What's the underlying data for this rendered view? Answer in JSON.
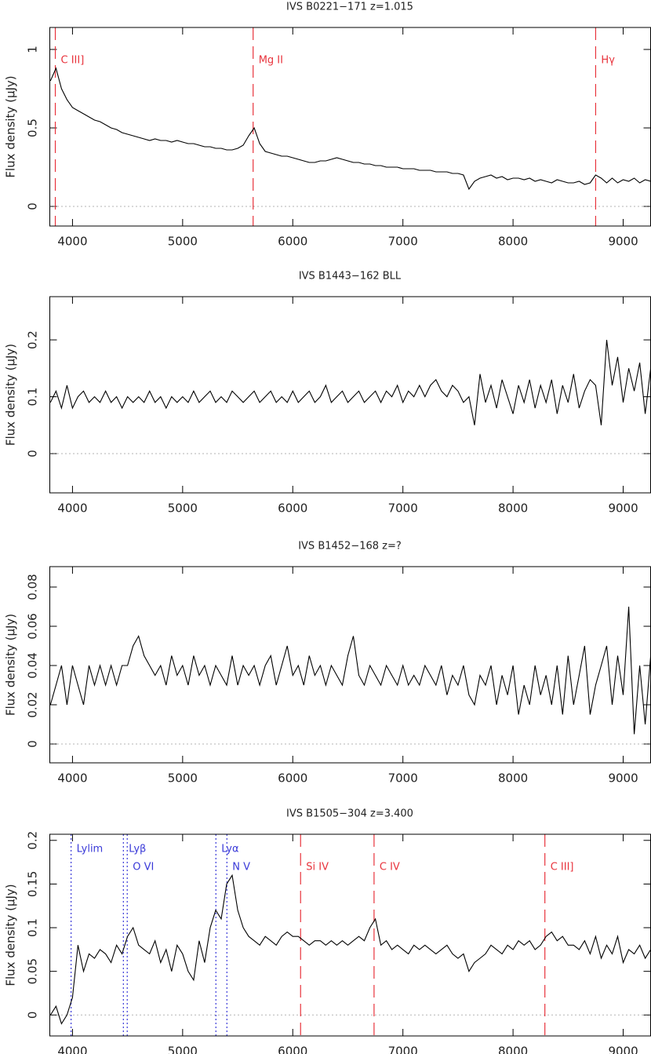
{
  "chart_data": [
    {
      "type": "line",
      "title": "IVS B0221−171 z=1.015",
      "y_label": "Flux density (μJy)",
      "color": "#000000",
      "hline": 0,
      "xlim": [
        3794,
        9249
      ],
      "ylim": [
        -0.125,
        1.14
      ],
      "xticks": [
        4000,
        5000,
        6000,
        7000,
        8000,
        9000
      ],
      "yticks": [
        0,
        0.5,
        1
      ],
      "x": [
        3800,
        3850,
        3900,
        3950,
        4000,
        4050,
        4100,
        4150,
        4200,
        4250,
        4300,
        4350,
        4400,
        4450,
        4500,
        4550,
        4600,
        4650,
        4700,
        4750,
        4800,
        4850,
        4900,
        4950,
        5000,
        5050,
        5100,
        5150,
        5200,
        5250,
        5300,
        5350,
        5400,
        5450,
        5500,
        5550,
        5600,
        5650,
        5700,
        5750,
        5800,
        5850,
        5900,
        5950,
        6000,
        6050,
        6100,
        6150,
        6200,
        6250,
        6300,
        6350,
        6400,
        6450,
        6500,
        6550,
        6600,
        6650,
        6700,
        6750,
        6800,
        6850,
        6900,
        6950,
        7000,
        7050,
        7100,
        7150,
        7200,
        7250,
        7300,
        7350,
        7400,
        7450,
        7500,
        7550,
        7600,
        7650,
        7700,
        7750,
        7800,
        7850,
        7900,
        7950,
        8000,
        8050,
        8100,
        8150,
        8200,
        8250,
        8300,
        8350,
        8400,
        8450,
        8500,
        8550,
        8600,
        8650,
        8700,
        8750,
        8800,
        8850,
        8900,
        8950,
        9000,
        9050,
        9100,
        9150,
        9200,
        9250
      ],
      "values": [
        0.8,
        0.88,
        0.75,
        0.68,
        0.63,
        0.61,
        0.59,
        0.57,
        0.55,
        0.54,
        0.52,
        0.5,
        0.49,
        0.47,
        0.46,
        0.45,
        0.44,
        0.43,
        0.42,
        0.43,
        0.42,
        0.42,
        0.41,
        0.42,
        0.41,
        0.4,
        0.4,
        0.39,
        0.38,
        0.38,
        0.37,
        0.37,
        0.36,
        0.36,
        0.37,
        0.39,
        0.45,
        0.5,
        0.4,
        0.35,
        0.34,
        0.33,
        0.32,
        0.32,
        0.31,
        0.3,
        0.29,
        0.28,
        0.28,
        0.29,
        0.29,
        0.3,
        0.31,
        0.3,
        0.29,
        0.28,
        0.28,
        0.27,
        0.27,
        0.26,
        0.26,
        0.25,
        0.25,
        0.25,
        0.24,
        0.24,
        0.24,
        0.23,
        0.23,
        0.23,
        0.22,
        0.22,
        0.22,
        0.21,
        0.21,
        0.2,
        0.11,
        0.16,
        0.18,
        0.19,
        0.2,
        0.18,
        0.19,
        0.17,
        0.18,
        0.18,
        0.17,
        0.18,
        0.16,
        0.17,
        0.16,
        0.15,
        0.17,
        0.16,
        0.15,
        0.15,
        0.16,
        0.14,
        0.15,
        0.2,
        0.18,
        0.15,
        0.18,
        0.15,
        0.17,
        0.16,
        0.18,
        0.15,
        0.17,
        0.16
      ],
      "lines": [
        {
          "x": 3844,
          "label": "C III]",
          "color": "#e8333c",
          "style": "dashed"
        },
        {
          "x": 5640,
          "label": "Mg II",
          "color": "#e8333c",
          "style": "dashed"
        },
        {
          "x": 8750,
          "label": "Hγ",
          "color": "#e8333c",
          "style": "dashed"
        }
      ]
    },
    {
      "type": "line",
      "title": "IVS B1443−162   BLL",
      "y_label": "Flux density (μJy)",
      "color": "#000000",
      "hline": 0,
      "xlim": [
        3794,
        9249
      ],
      "ylim": [
        -0.069,
        0.276
      ],
      "xticks": [
        4000,
        5000,
        6000,
        7000,
        8000,
        9000
      ],
      "yticks": [
        0,
        0.1,
        0.2
      ],
      "x": [
        3800,
        3850,
        3900,
        3950,
        4000,
        4050,
        4100,
        4150,
        4200,
        4250,
        4300,
        4350,
        4400,
        4450,
        4500,
        4550,
        4600,
        4650,
        4700,
        4750,
        4800,
        4850,
        4900,
        4950,
        5000,
        5050,
        5100,
        5150,
        5200,
        5250,
        5300,
        5350,
        5400,
        5450,
        5500,
        5550,
        5600,
        5650,
        5700,
        5750,
        5800,
        5850,
        5900,
        5950,
        6000,
        6050,
        6100,
        6150,
        6200,
        6250,
        6300,
        6350,
        6400,
        6450,
        6500,
        6550,
        6600,
        6650,
        6700,
        6750,
        6800,
        6850,
        6900,
        6950,
        7000,
        7050,
        7100,
        7150,
        7200,
        7250,
        7300,
        7350,
        7400,
        7450,
        7500,
        7550,
        7600,
        7650,
        7700,
        7750,
        7800,
        7850,
        7900,
        7950,
        8000,
        8050,
        8100,
        8150,
        8200,
        8250,
        8300,
        8350,
        8400,
        8450,
        8500,
        8550,
        8600,
        8650,
        8700,
        8750,
        8800,
        8850,
        8900,
        8950,
        9000,
        9050,
        9100,
        9150,
        9200,
        9250
      ],
      "values": [
        0.09,
        0.11,
        0.08,
        0.12,
        0.08,
        0.1,
        0.11,
        0.09,
        0.1,
        0.09,
        0.11,
        0.09,
        0.1,
        0.08,
        0.1,
        0.09,
        0.1,
        0.09,
        0.11,
        0.09,
        0.1,
        0.08,
        0.1,
        0.09,
        0.1,
        0.09,
        0.11,
        0.09,
        0.1,
        0.11,
        0.09,
        0.1,
        0.09,
        0.11,
        0.1,
        0.09,
        0.1,
        0.11,
        0.09,
        0.1,
        0.11,
        0.09,
        0.1,
        0.09,
        0.11,
        0.09,
        0.1,
        0.11,
        0.09,
        0.1,
        0.12,
        0.09,
        0.1,
        0.11,
        0.09,
        0.1,
        0.11,
        0.09,
        0.1,
        0.11,
        0.09,
        0.11,
        0.1,
        0.12,
        0.09,
        0.11,
        0.1,
        0.12,
        0.1,
        0.12,
        0.13,
        0.11,
        0.1,
        0.12,
        0.11,
        0.09,
        0.1,
        0.05,
        0.14,
        0.09,
        0.12,
        0.08,
        0.13,
        0.1,
        0.07,
        0.12,
        0.09,
        0.13,
        0.08,
        0.12,
        0.09,
        0.13,
        0.07,
        0.12,
        0.09,
        0.14,
        0.08,
        0.11,
        0.13,
        0.12,
        0.05,
        0.2,
        0.12,
        0.17,
        0.09,
        0.15,
        0.11,
        0.16,
        0.07,
        0.15
      ],
      "lines": []
    },
    {
      "type": "line",
      "title": "IVS B1452−168 z=?",
      "y_label": "Flux density (μJy)",
      "color": "#000000",
      "hline": 0,
      "xlim": [
        3794,
        9249
      ],
      "ylim": [
        -0.0096,
        0.0904
      ],
      "xticks": [
        4000,
        5000,
        6000,
        7000,
        8000,
        9000
      ],
      "yticks": [
        0,
        0.02,
        0.04,
        0.06,
        0.08
      ],
      "x": [
        3800,
        3850,
        3900,
        3950,
        4000,
        4050,
        4100,
        4150,
        4200,
        4250,
        4300,
        4350,
        4400,
        4450,
        4500,
        4550,
        4600,
        4650,
        4700,
        4750,
        4800,
        4850,
        4900,
        4950,
        5000,
        5050,
        5100,
        5150,
        5200,
        5250,
        5300,
        5350,
        5400,
        5450,
        5500,
        5550,
        5600,
        5650,
        5700,
        5750,
        5800,
        5850,
        5900,
        5950,
        6000,
        6050,
        6100,
        6150,
        6200,
        6250,
        6300,
        6350,
        6400,
        6450,
        6500,
        6550,
        6600,
        6650,
        6700,
        6750,
        6800,
        6850,
        6900,
        6950,
        7000,
        7050,
        7100,
        7150,
        7200,
        7250,
        7300,
        7350,
        7400,
        7450,
        7500,
        7550,
        7600,
        7650,
        7700,
        7750,
        7800,
        7850,
        7900,
        7950,
        8000,
        8050,
        8100,
        8150,
        8200,
        8250,
        8300,
        8350,
        8400,
        8450,
        8500,
        8550,
        8600,
        8650,
        8700,
        8750,
        8800,
        8850,
        8900,
        8950,
        9000,
        9050,
        9100,
        9150,
        9200,
        9250
      ],
      "values": [
        0.02,
        0.03,
        0.04,
        0.02,
        0.04,
        0.03,
        0.02,
        0.04,
        0.03,
        0.04,
        0.03,
        0.04,
        0.03,
        0.04,
        0.04,
        0.05,
        0.055,
        0.045,
        0.04,
        0.035,
        0.04,
        0.03,
        0.045,
        0.035,
        0.04,
        0.03,
        0.045,
        0.035,
        0.04,
        0.03,
        0.04,
        0.035,
        0.03,
        0.045,
        0.03,
        0.04,
        0.035,
        0.04,
        0.03,
        0.04,
        0.045,
        0.03,
        0.04,
        0.05,
        0.035,
        0.04,
        0.03,
        0.045,
        0.035,
        0.04,
        0.03,
        0.04,
        0.035,
        0.03,
        0.045,
        0.055,
        0.035,
        0.03,
        0.04,
        0.035,
        0.03,
        0.04,
        0.035,
        0.03,
        0.04,
        0.03,
        0.035,
        0.03,
        0.04,
        0.035,
        0.03,
        0.04,
        0.025,
        0.035,
        0.03,
        0.04,
        0.025,
        0.02,
        0.035,
        0.03,
        0.04,
        0.02,
        0.035,
        0.025,
        0.04,
        0.015,
        0.03,
        0.02,
        0.04,
        0.025,
        0.035,
        0.02,
        0.04,
        0.015,
        0.045,
        0.02,
        0.035,
        0.05,
        0.015,
        0.03,
        0.04,
        0.05,
        0.02,
        0.045,
        0.025,
        0.07,
        0.005,
        0.04,
        0.01,
        0.045
      ],
      "lines": []
    },
    {
      "type": "line",
      "title": "IVS B1505−304 z=3.400",
      "y_label": "Flux density (μJy)",
      "color": "#000000",
      "hline": 0,
      "xlim": [
        3794,
        9249
      ],
      "ylim": [
        -0.024,
        0.207
      ],
      "xticks": [
        4000,
        5000,
        6000,
        7000,
        8000,
        9000
      ],
      "yticks": [
        0,
        0.05,
        0.1,
        0.15,
        0.2
      ],
      "x": [
        3800,
        3850,
        3900,
        3950,
        4000,
        4050,
        4100,
        4150,
        4200,
        4250,
        4300,
        4350,
        4400,
        4450,
        4500,
        4550,
        4600,
        4650,
        4700,
        4750,
        4800,
        4850,
        4900,
        4950,
        5000,
        5050,
        5100,
        5150,
        5200,
        5250,
        5300,
        5350,
        5400,
        5450,
        5500,
        5550,
        5600,
        5650,
        5700,
        5750,
        5800,
        5850,
        5900,
        5950,
        6000,
        6050,
        6100,
        6150,
        6200,
        6250,
        6300,
        6350,
        6400,
        6450,
        6500,
        6550,
        6600,
        6650,
        6700,
        6750,
        6800,
        6850,
        6900,
        6950,
        7000,
        7050,
        7100,
        7150,
        7200,
        7250,
        7300,
        7350,
        7400,
        7450,
        7500,
        7550,
        7600,
        7650,
        7700,
        7750,
        7800,
        7850,
        7900,
        7950,
        8000,
        8050,
        8100,
        8150,
        8200,
        8250,
        8300,
        8350,
        8400,
        8450,
        8500,
        8550,
        8600,
        8650,
        8700,
        8750,
        8800,
        8850,
        8900,
        8950,
        9000,
        9050,
        9100,
        9150,
        9200,
        9250
      ],
      "values": [
        0.0,
        0.01,
        -0.01,
        0.0,
        0.02,
        0.08,
        0.05,
        0.07,
        0.065,
        0.075,
        0.07,
        0.06,
        0.08,
        0.07,
        0.09,
        0.1,
        0.08,
        0.075,
        0.07,
        0.085,
        0.06,
        0.075,
        0.05,
        0.08,
        0.07,
        0.05,
        0.04,
        0.085,
        0.06,
        0.1,
        0.12,
        0.11,
        0.15,
        0.16,
        0.12,
        0.1,
        0.09,
        0.085,
        0.08,
        0.09,
        0.085,
        0.08,
        0.09,
        0.095,
        0.09,
        0.09,
        0.085,
        0.08,
        0.085,
        0.085,
        0.08,
        0.085,
        0.08,
        0.085,
        0.08,
        0.085,
        0.09,
        0.085,
        0.1,
        0.11,
        0.08,
        0.085,
        0.075,
        0.08,
        0.075,
        0.07,
        0.08,
        0.075,
        0.08,
        0.075,
        0.07,
        0.075,
        0.08,
        0.07,
        0.065,
        0.07,
        0.05,
        0.06,
        0.065,
        0.07,
        0.08,
        0.075,
        0.07,
        0.08,
        0.075,
        0.085,
        0.08,
        0.085,
        0.075,
        0.08,
        0.09,
        0.095,
        0.085,
        0.09,
        0.08,
        0.08,
        0.075,
        0.085,
        0.07,
        0.09,
        0.065,
        0.08,
        0.07,
        0.09,
        0.06,
        0.075,
        0.07,
        0.08,
        0.065,
        0.075
      ],
      "lines": [
        {
          "x": 3987,
          "label": "Lylim",
          "color": "#3a3ad8",
          "style": "dotted"
        },
        {
          "x": 4462,
          "label": "Lyβ",
          "color": "#3a3ad8",
          "style": "dotted"
        },
        {
          "x": 4497,
          "label": "O VI",
          "color": "#3a3ad8",
          "style": "dotted"
        },
        {
          "x": 5302,
          "label": "Lyα",
          "color": "#3a3ad8",
          "style": "dotted"
        },
        {
          "x": 5402,
          "label": "N V",
          "color": "#3a3ad8",
          "style": "dotted"
        },
        {
          "x": 6071,
          "label": "Si IV",
          "color": "#e8333c",
          "style": "dashed"
        },
        {
          "x": 6738,
          "label": "C IV",
          "color": "#e8333c",
          "style": "dashed"
        },
        {
          "x": 8289,
          "label": "C III]",
          "color": "#e8333c",
          "style": "dashed"
        }
      ]
    }
  ]
}
